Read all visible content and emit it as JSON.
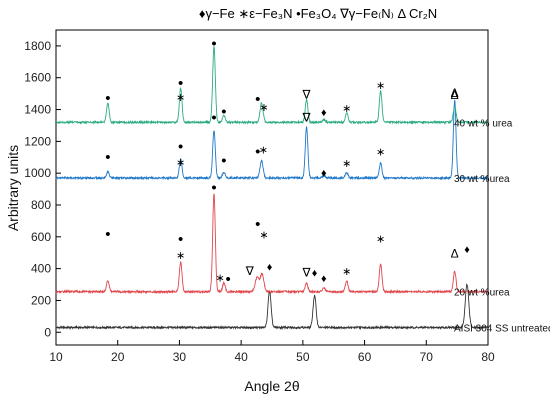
{
  "chart_data": {
    "type": "line",
    "legend_text": "♦γ−Fe   ∗ε−Fe₃N   •Fe₃O₄   ∇γ−Fe₍N₎   Δ Cr₂N",
    "legend_items": [
      {
        "symbol": "♦",
        "label": "γ−Fe"
      },
      {
        "symbol": "∗",
        "label": "ε−Fe₃N"
      },
      {
        "symbol": "•",
        "label": "Fe₃O₄"
      },
      {
        "symbol": "∇",
        "label": "γ−Fe₍N₎"
      },
      {
        "symbol": "Δ",
        "label": "Cr₂N"
      }
    ],
    "xlabel": "Angle 2θ",
    "ylabel": "Arbitrary units",
    "xlim": [
      10,
      80
    ],
    "ylim": [
      -80,
      1900
    ],
    "xticks": [
      10,
      20,
      30,
      40,
      50,
      60,
      70,
      80
    ],
    "yticks": [
      0,
      200,
      400,
      600,
      800,
      1000,
      1200,
      1400,
      1600,
      1800
    ],
    "grid": false,
    "series": [
      {
        "name": "AISI 304 SS untreated",
        "color": "#333333",
        "baseline": 30,
        "peaks": [
          [
            44.6,
            230,
            0.35
          ],
          [
            51.9,
            200,
            0.35
          ],
          [
            76.6,
            270,
            0.4
          ]
        ]
      },
      {
        "name": "20 wt %urea",
        "color": "#e0474c",
        "baseline": 255,
        "peaks": [
          [
            18.4,
            70,
            0.3
          ],
          [
            30.2,
            185,
            0.3
          ],
          [
            35.6,
            615,
            0.3
          ],
          [
            37.2,
            55,
            0.3
          ],
          [
            42.6,
            90,
            0.45
          ],
          [
            43.4,
            110,
            0.4
          ],
          [
            50.6,
            55,
            0.3
          ],
          [
            53.4,
            25,
            0.3
          ],
          [
            57.1,
            70,
            0.3
          ],
          [
            62.6,
            175,
            0.3
          ],
          [
            74.6,
            130,
            0.3
          ]
        ]
      },
      {
        "name": "30 wt %urea",
        "color": "#1f78c8",
        "baseline": 970,
        "peaks": [
          [
            18.4,
            40,
            0.3
          ],
          [
            30.2,
            120,
            0.3
          ],
          [
            35.6,
            300,
            0.3
          ],
          [
            37.2,
            35,
            0.3
          ],
          [
            43.3,
            110,
            0.35
          ],
          [
            50.6,
            320,
            0.3
          ],
          [
            53.4,
            15,
            0.3
          ],
          [
            57.1,
            35,
            0.3
          ],
          [
            62.6,
            95,
            0.3
          ],
          [
            74.6,
            490,
            0.3
          ]
        ]
      },
      {
        "name": "40 wt % urea",
        "color": "#2bab84",
        "baseline": 1320,
        "peaks": [
          [
            18.4,
            120,
            0.3
          ],
          [
            30.2,
            215,
            0.3
          ],
          [
            35.6,
            480,
            0.3
          ],
          [
            37.2,
            45,
            0.3
          ],
          [
            43.3,
            120,
            0.35
          ],
          [
            50.6,
            145,
            0.3
          ],
          [
            53.4,
            15,
            0.3
          ],
          [
            57.1,
            60,
            0.3
          ],
          [
            62.6,
            200,
            0.3
          ],
          [
            74.6,
            105,
            0.3
          ]
        ]
      }
    ],
    "annotations": [
      {
        "symbol": "♦",
        "x": 44.6,
        "y": 415
      },
      {
        "symbol": "♦",
        "x": 51.9,
        "y": 375
      },
      {
        "symbol": "♦",
        "x": 76.6,
        "y": 525
      },
      {
        "symbol": "•",
        "x": 18.4,
        "y": 610
      },
      {
        "symbol": "•",
        "x": 30.2,
        "y": 580
      },
      {
        "symbol": "∗",
        "x": 30.2,
        "y": 485
      },
      {
        "symbol": "•",
        "x": 35.6,
        "y": 905
      },
      {
        "symbol": "∗",
        "x": 36.6,
        "y": 345
      },
      {
        "symbol": "•",
        "x": 37.9,
        "y": 330
      },
      {
        "symbol": "∇",
        "x": 41.4,
        "y": 385
      },
      {
        "symbol": "•",
        "x": 42.7,
        "y": 675
      },
      {
        "symbol": "∗",
        "x": 43.7,
        "y": 615
      },
      {
        "symbol": "∇",
        "x": 50.6,
        "y": 375
      },
      {
        "symbol": "♦",
        "x": 53.4,
        "y": 340
      },
      {
        "symbol": "∗",
        "x": 57.1,
        "y": 385
      },
      {
        "symbol": "∗",
        "x": 62.6,
        "y": 590
      },
      {
        "symbol": "Δ",
        "x": 74.6,
        "y": 495
      },
      {
        "symbol": "•",
        "x": 18.4,
        "y": 1095
      },
      {
        "symbol": "•",
        "x": 30.2,
        "y": 1160
      },
      {
        "symbol": "∗",
        "x": 30.2,
        "y": 1070
      },
      {
        "symbol": "•",
        "x": 35.6,
        "y": 1345
      },
      {
        "symbol": "•",
        "x": 37.2,
        "y": 1075
      },
      {
        "symbol": "•",
        "x": 42.7,
        "y": 1130
      },
      {
        "symbol": "∗",
        "x": 43.6,
        "y": 1150
      },
      {
        "symbol": "∇",
        "x": 50.6,
        "y": 1350
      },
      {
        "symbol": "♦",
        "x": 53.4,
        "y": 1005
      },
      {
        "symbol": "∗",
        "x": 57.1,
        "y": 1065
      },
      {
        "symbol": "∗",
        "x": 62.6,
        "y": 1135
      },
      {
        "symbol": "Δ",
        "x": 74.6,
        "y": 1505
      },
      {
        "symbol": "•",
        "x": 18.4,
        "y": 1465
      },
      {
        "symbol": "•",
        "x": 30.2,
        "y": 1560
      },
      {
        "symbol": "∗",
        "x": 30.2,
        "y": 1480
      },
      {
        "symbol": "•",
        "x": 35.6,
        "y": 1810
      },
      {
        "symbol": "•",
        "x": 37.2,
        "y": 1380
      },
      {
        "symbol": "•",
        "x": 42.7,
        "y": 1460
      },
      {
        "symbol": "∗",
        "x": 43.7,
        "y": 1415
      },
      {
        "symbol": "∇",
        "x": 50.6,
        "y": 1495
      },
      {
        "symbol": "♦",
        "x": 53.4,
        "y": 1385
      },
      {
        "symbol": "∗",
        "x": 57.1,
        "y": 1410
      },
      {
        "symbol": "∗",
        "x": 62.6,
        "y": 1555
      },
      {
        "symbol": "Δ",
        "x": 74.6,
        "y": 1490
      }
    ]
  }
}
